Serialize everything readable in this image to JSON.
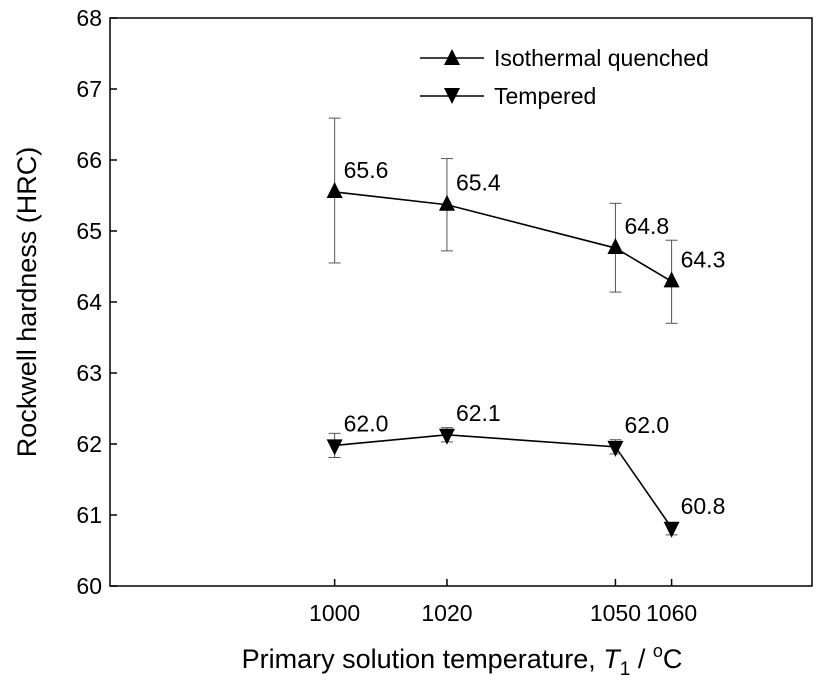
{
  "chart_data": {
    "type": "line",
    "xlabel": "Primary solution temperature,",
    "xlabel_var": "T",
    "xlabel_sub": "1",
    "xlabel_unit_sep": " / ",
    "xlabel_unit_sup": "o",
    "xlabel_unit": "C",
    "ylabel": "Rockwell hardness (HRC)",
    "xlim": [
      960,
      1085
    ],
    "ylim": [
      60,
      68
    ],
    "x_ticks": [
      1000,
      1020,
      1050,
      1060
    ],
    "y_ticks": [
      60,
      61,
      62,
      63,
      64,
      65,
      66,
      67,
      68
    ],
    "legend_position": "top-right",
    "grid": false,
    "series": [
      {
        "name": "Isothermal quenched",
        "marker": "triangle-up",
        "x": [
          1000,
          1020,
          1050,
          1060
        ],
        "y": [
          65.55,
          65.37,
          64.76,
          64.29
        ],
        "err_low": [
          64.55,
          64.72,
          64.14,
          63.7
        ],
        "err_high": [
          66.59,
          66.02,
          65.39,
          64.87
        ],
        "labels": [
          "65.6",
          "65.4",
          "64.8",
          "64.3"
        ]
      },
      {
        "name": "Tempered",
        "marker": "triangle-down",
        "x": [
          1000,
          1020,
          1050,
          1060
        ],
        "y": [
          61.98,
          62.13,
          61.96,
          60.82
        ],
        "err_low": [
          61.81,
          62.03,
          61.86,
          60.72
        ],
        "err_high": [
          62.15,
          62.23,
          62.06,
          60.89
        ],
        "labels": [
          "62.0",
          "62.1",
          "62.0",
          "60.8"
        ]
      }
    ]
  }
}
